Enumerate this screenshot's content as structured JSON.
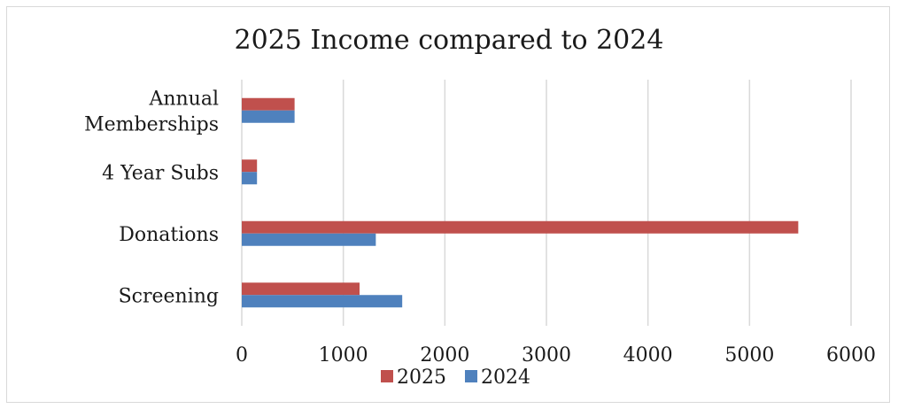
{
  "chart_data": {
    "type": "bar",
    "orientation": "horizontal",
    "title": "2025 Income compared to 2024",
    "categories": [
      "Screening",
      "Donations",
      "4 Year Subs",
      "Annual Memberships"
    ],
    "category_lines": [
      [
        "Screening"
      ],
      [
        "Donations"
      ],
      [
        "4 Year Subs"
      ],
      [
        "Annual",
        "Memberships"
      ]
    ],
    "series": [
      {
        "name": "2025",
        "color": "#c0504d",
        "values": [
          1160,
          5480,
          150,
          520
        ]
      },
      {
        "name": "2024",
        "color": "#4f81bd",
        "values": [
          1580,
          1320,
          150,
          520
        ]
      }
    ],
    "xlim": [
      0,
      6000
    ],
    "xticks": [
      0,
      1000,
      2000,
      3000,
      4000,
      5000,
      6000
    ],
    "xlabel": "",
    "ylabel": "",
    "grid": true,
    "legend_position": "bottom"
  }
}
